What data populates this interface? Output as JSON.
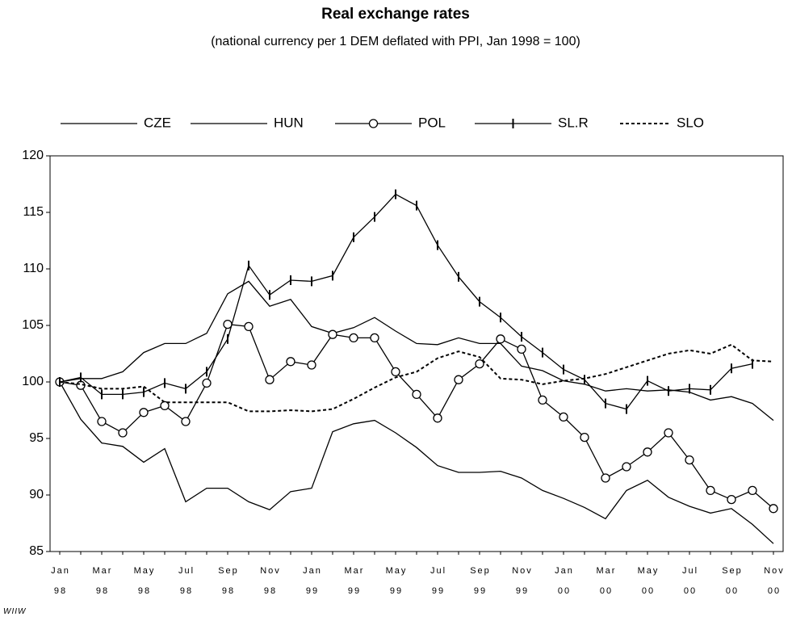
{
  "chart_data": {
    "type": "line",
    "title": "Real exchange rates",
    "subtitle": "(national currency per 1 DEM deflated with PPI, Jan 1998 = 100)",
    "note": "WIIW",
    "categories": [
      "Jan 98",
      null,
      "Mar 98",
      null,
      "May 98",
      null,
      "Jul 98",
      null,
      "Sep 98",
      null,
      "Nov 98",
      null,
      "Jan 99",
      null,
      "Mar 99",
      null,
      "May 99",
      null,
      "Jul 99",
      null,
      "Sep 99",
      null,
      "Nov 99",
      null,
      "Jan 00",
      null,
      "Mar 00",
      null,
      "May 00",
      null,
      "Jul 00",
      null,
      "Sep 00",
      null,
      "Nov 00"
    ],
    "ylim": [
      85,
      120
    ],
    "yticks": [
      85,
      90,
      95,
      100,
      105,
      110,
      115,
      120
    ],
    "series": [
      {
        "name": "CZE",
        "color": "#000000",
        "marker": "none",
        "dash": "solid",
        "values": [
          100,
          96.7,
          94.6,
          94.3,
          92.9,
          94.1,
          89.4,
          90.6,
          90.6,
          89.4,
          88.7,
          90.3,
          90.6,
          95.6,
          96.3,
          96.6,
          95.5,
          94.2,
          92.6,
          92.0,
          92.0,
          92.1,
          91.5,
          90.4,
          89.7,
          88.9,
          87.9,
          90.4,
          91.3,
          89.8,
          89.0,
          88.4,
          88.8,
          87.4,
          85.7
        ]
      },
      {
        "name": "HUN",
        "color": "#000000",
        "marker": "none",
        "dash": "solid",
        "values": [
          100,
          100.3,
          100.3,
          100.9,
          102.6,
          103.4,
          103.4,
          104.3,
          107.8,
          108.9,
          106.7,
          107.3,
          104.9,
          104.3,
          104.8,
          105.7,
          104.5,
          103.4,
          103.3,
          103.9,
          103.4,
          103.4,
          101.4,
          101.0,
          100.1,
          99.8,
          99.2,
          99.4,
          99.2,
          99.3,
          99.1,
          98.4,
          98.7,
          98.1,
          96.6
        ]
      },
      {
        "name": "POL",
        "color": "#000000",
        "marker": "circle",
        "dash": "solid",
        "values": [
          100,
          99.7,
          96.5,
          95.5,
          97.3,
          97.9,
          96.5,
          99.9,
          105.1,
          104.9,
          100.2,
          101.8,
          101.5,
          104.2,
          103.9,
          103.9,
          100.9,
          98.9,
          96.8,
          100.2,
          101.6,
          103.8,
          102.9,
          98.4,
          96.9,
          95.1,
          91.5,
          92.5,
          93.8,
          95.5,
          93.1,
          90.4,
          89.6,
          90.4,
          88.8
        ]
      },
      {
        "name": "SL.R",
        "color": "#000000",
        "marker": "tick",
        "dash": "solid",
        "values": [
          100,
          100.4,
          98.9,
          98.9,
          99.1,
          99.9,
          99.4,
          100.9,
          103.8,
          110.3,
          107.7,
          109.0,
          108.9,
          109.4,
          112.8,
          114.6,
          116.6,
          115.6,
          112.1,
          109.3,
          107.1,
          105.7,
          104.0,
          102.6,
          101.1,
          100.2,
          98.1,
          97.6,
          100.1,
          99.2,
          99.4,
          99.3,
          101.2,
          101.6,
          null
        ]
      },
      {
        "name": "SLO",
        "color": "#000000",
        "marker": "none",
        "dash": "dotted",
        "values": [
          100,
          99.8,
          99.4,
          99.4,
          99.6,
          98.2,
          98.2,
          98.2,
          98.2,
          97.4,
          97.4,
          97.5,
          97.4,
          97.6,
          98.5,
          99.5,
          100.4,
          100.9,
          102.1,
          102.7,
          102.2,
          100.3,
          100.2,
          99.8,
          100.1,
          100.3,
          100.7,
          101.3,
          101.9,
          102.5,
          102.8,
          102.5,
          103.3,
          101.9,
          101.8
        ]
      }
    ]
  }
}
